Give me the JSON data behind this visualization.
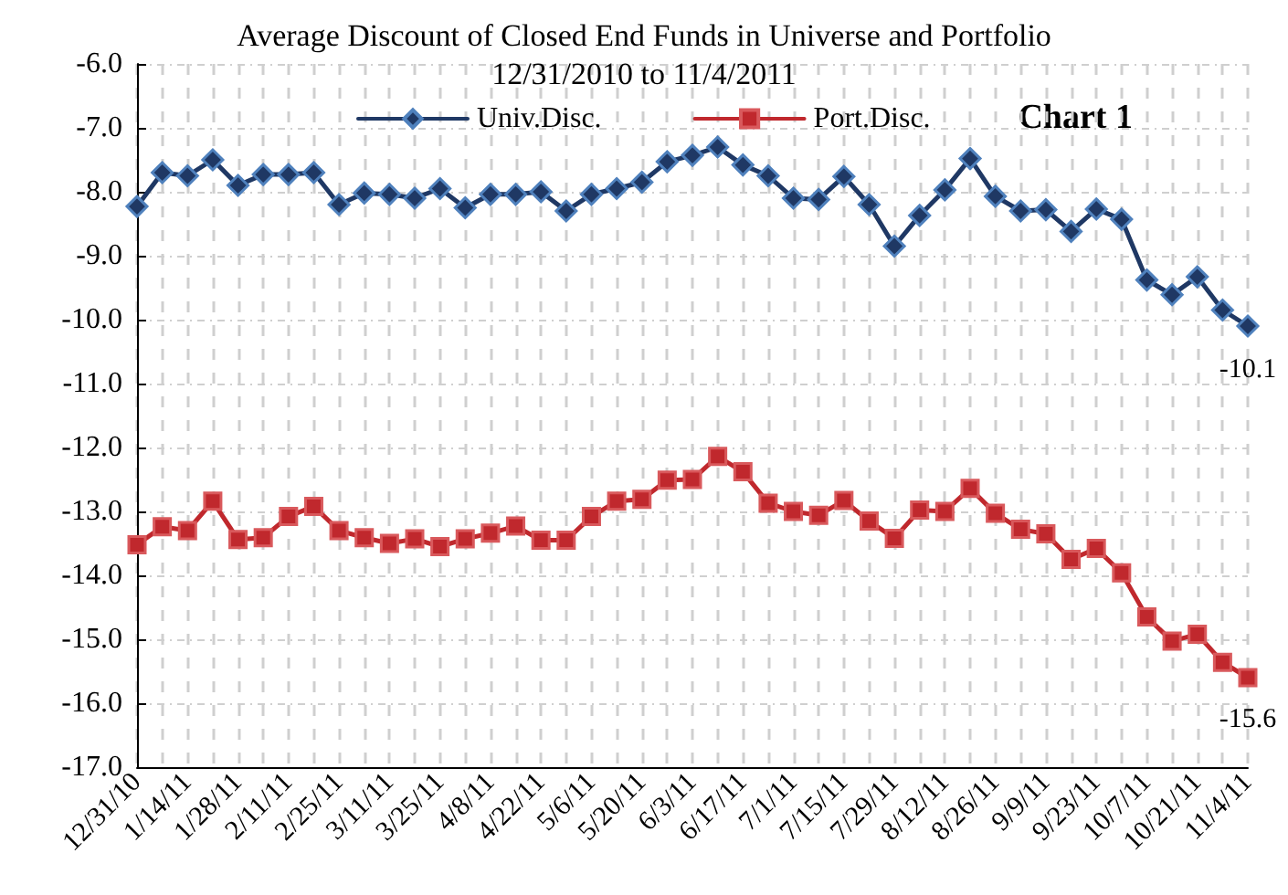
{
  "chart_data": {
    "type": "line",
    "title": "Average Discount of Closed End Funds in Universe and Portfolio",
    "subtitle": "12/31/2010 to 11/4/2011",
    "annotations": [
      "Chart 1"
    ],
    "categories": [
      "12/31/10",
      null,
      "1/14/11",
      null,
      "1/28/11",
      null,
      "2/11/11",
      null,
      "2/25/11",
      null,
      "3/11/11",
      null,
      "3/25/11",
      null,
      "4/8/11",
      null,
      "4/22/11",
      null,
      "5/6/11",
      null,
      "5/20/11",
      null,
      "6/3/11",
      null,
      "6/17/11",
      null,
      "7/1/11",
      null,
      "7/15/11",
      null,
      "7/29/11",
      null,
      "8/12/11",
      null,
      "8/26/11",
      null,
      "9/9/11",
      null,
      "9/23/11",
      null,
      "10/7/11",
      null,
      "10/21/11",
      null,
      "11/4/11"
    ],
    "series": [
      {
        "name": "Univ.Disc.",
        "color": "#1f3864",
        "marker": "diamond",
        "values": [
          -8.23,
          -7.7,
          -7.75,
          -7.5,
          -7.9,
          -7.73,
          -7.73,
          -7.7,
          -8.2,
          -8.02,
          -8.04,
          -8.1,
          -7.95,
          -8.25,
          -8.04,
          -8.04,
          -8.0,
          -8.3,
          -8.04,
          -7.95,
          -7.85,
          -7.53,
          -7.43,
          -7.3,
          -7.58,
          -7.75,
          -8.1,
          -8.12,
          -7.76,
          -8.2,
          -8.85,
          -8.37,
          -7.97,
          -7.48,
          -8.07,
          -8.3,
          -8.28,
          -8.62,
          -8.27,
          -8.43,
          -9.38,
          -9.61,
          -9.33,
          -9.85,
          -10.1
        ],
        "value_labels": [
          null,
          null,
          null,
          null,
          null,
          null,
          null,
          null,
          null,
          null,
          null,
          null,
          null,
          null,
          null,
          null,
          null,
          null,
          null,
          null,
          null,
          null,
          null,
          null,
          null,
          null,
          null,
          null,
          null,
          null,
          null,
          null,
          null,
          null,
          null,
          null,
          null,
          null,
          null,
          null,
          null,
          null,
          null,
          null,
          "-10.1"
        ]
      },
      {
        "name": "Port.Disc.",
        "color": "#c0282d",
        "marker": "square",
        "values": [
          -13.52,
          -13.24,
          -13.3,
          -12.84,
          -13.44,
          -13.41,
          -13.08,
          -12.92,
          -13.3,
          -13.41,
          -13.5,
          -13.43,
          -13.55,
          -13.43,
          -13.34,
          -13.23,
          -13.45,
          -13.45,
          -13.08,
          -12.84,
          -12.81,
          -12.51,
          -12.5,
          -12.14,
          -12.38,
          -12.87,
          -13.0,
          -13.06,
          -12.83,
          -13.15,
          -13.42,
          -12.98,
          -13.0,
          -12.64,
          -13.03,
          -13.28,
          -13.35,
          -13.75,
          -13.58,
          -13.96,
          -14.65,
          -15.03,
          -14.92,
          -15.36,
          -15.6
        ],
        "value_labels": [
          null,
          null,
          null,
          null,
          null,
          null,
          null,
          null,
          null,
          null,
          null,
          null,
          null,
          null,
          null,
          null,
          null,
          null,
          null,
          null,
          null,
          null,
          null,
          null,
          null,
          null,
          null,
          null,
          null,
          null,
          null,
          null,
          null,
          null,
          null,
          null,
          null,
          null,
          null,
          null,
          null,
          null,
          null,
          null,
          "-15.6"
        ]
      }
    ],
    "ylim": [
      -17,
      -6
    ],
    "yticks": [
      {
        "value": -17,
        "label": "-17.0"
      },
      {
        "value": -16,
        "label": "-16.0"
      },
      {
        "value": -15,
        "label": "-15.0"
      },
      {
        "value": -14,
        "label": "-14.0"
      },
      {
        "value": -13,
        "label": "-13.0"
      },
      {
        "value": -12,
        "label": "-12.0"
      },
      {
        "value": -11,
        "label": "-11.0"
      },
      {
        "value": -10,
        "label": "-10.0"
      },
      {
        "value": -9,
        "label": "-9.0"
      },
      {
        "value": -8,
        "label": "-8.0"
      },
      {
        "value": -7,
        "label": "-7.0"
      },
      {
        "value": -6,
        "label": "-6.0"
      }
    ],
    "grid": true,
    "legend": "top",
    "line_style": "solid"
  }
}
